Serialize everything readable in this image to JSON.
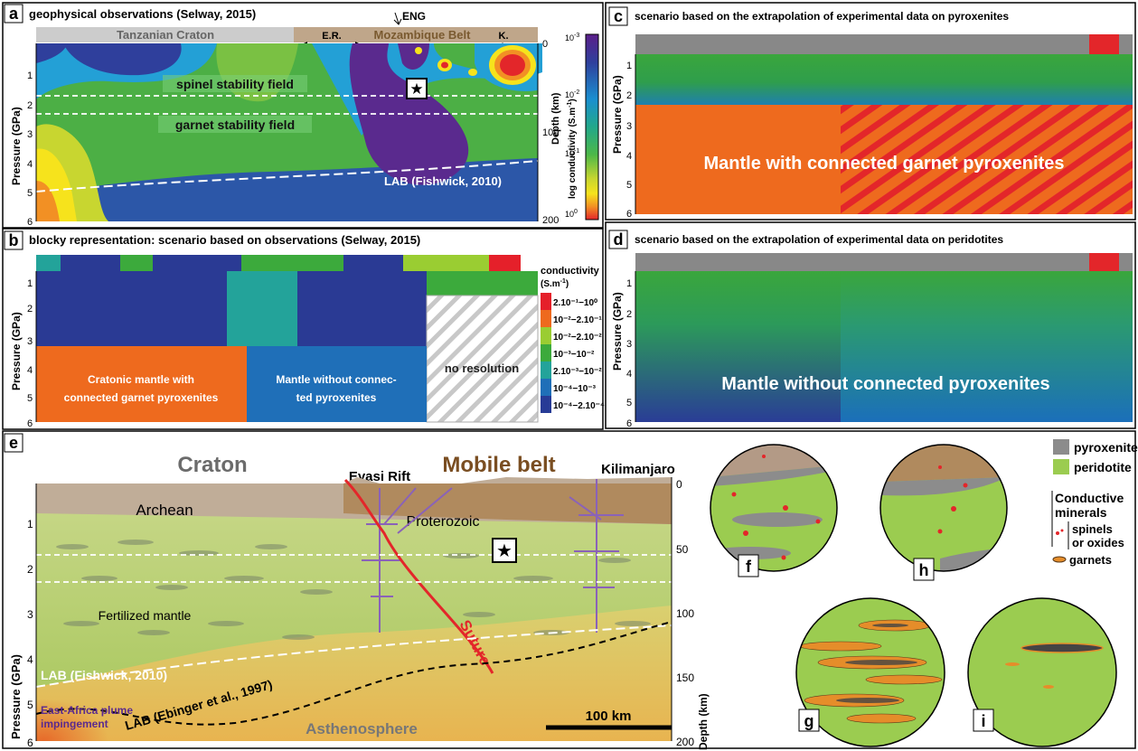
{
  "panels": {
    "a": {
      "letter": "a",
      "title": "geophysical observations (Selway, 2015)",
      "craton": "Tanzanian Craton",
      "er": "E.R.",
      "belt": "Mozambique Belt",
      "k": "K.",
      "eng": "ENG",
      "spinel": "spinel stability field",
      "garnet": "garnet stability field",
      "lab": "LAB (Fishwick, 2010)",
      "depth_label": "Depth (km)",
      "cbar_label": "log conductivity (S.m",
      "cbar_ticks": [
        "10",
        "10",
        "10",
        "10"
      ],
      "cbar_exps": [
        "-3",
        "-2",
        "-1",
        "0"
      ],
      "depth_ticks": [
        "0",
        "100",
        "200"
      ]
    },
    "b": {
      "letter": "b",
      "title": "blocky representation: scenario based on observations (Selway, 2015)",
      "box1": [
        "Cratonic mantle with",
        "connected garnet pyroxenites"
      ],
      "box2": [
        "Mantle without connec-",
        "ted pyroxenites"
      ],
      "box3": "no resolution",
      "legend_title": "conductivity",
      "legend_unit": "(S.m",
      "legend_items": [
        "2.10⁻¹−10⁰",
        "10⁻²−2.10⁻¹",
        "10⁻²−2.10⁻²",
        "10⁻³−10⁻²",
        "2.10⁻³−10⁻²",
        "10⁻⁴−10⁻³",
        "10⁻⁴−2.10⁻⁴"
      ],
      "legend_colors": [
        "#e5202a",
        "#ee6a1e",
        "#9acd32",
        "#3caa3c",
        "#23a39a",
        "#1f6fb8",
        "#273b96"
      ]
    },
    "c": {
      "letter": "c",
      "title": "scenario based on the extrapolation of experimental data on pyroxenites",
      "label": "Mantle with connected garnet pyroxenites"
    },
    "d": {
      "letter": "d",
      "title": "scenario based on the extrapolation of experimental data on peridotites",
      "label": "Mantle without connected pyroxenites"
    },
    "e": {
      "letter": "e",
      "craton": "Craton",
      "mobile": "Mobile belt",
      "eyasi": "Eyasi Rift",
      "kili": "Kilimanjaro",
      "archean": "Archean",
      "proterozoic": "Proterozoic",
      "fertilized": "Fertilized mantle",
      "suture": "Suture",
      "lab1": "LAB (Fishwick, 2010)",
      "lab2": "LAB (Ebinger et al., 1997)",
      "plume": [
        "East-Africa plume",
        "impingement"
      ],
      "astheno": "Asthenosphere",
      "scale": "100 km",
      "depth_label": "Depth (km)",
      "depth_ticks": [
        "0",
        "50",
        "100",
        "150",
        "200"
      ]
    },
    "legend": {
      "pyroxenite": "pyroxenite",
      "peridotite": "peridotite",
      "conductive": [
        "Conductive",
        "minerals"
      ],
      "spinels": [
        "spinels",
        "or oxides"
      ],
      "garnets": "garnets"
    },
    "circles": [
      "f",
      "h",
      "g",
      "i"
    ]
  },
  "axes": {
    "pressure_label": "Pressure (GPa)",
    "pressure_ticks": [
      "1",
      "2",
      "3",
      "4",
      "5",
      "6"
    ]
  }
}
